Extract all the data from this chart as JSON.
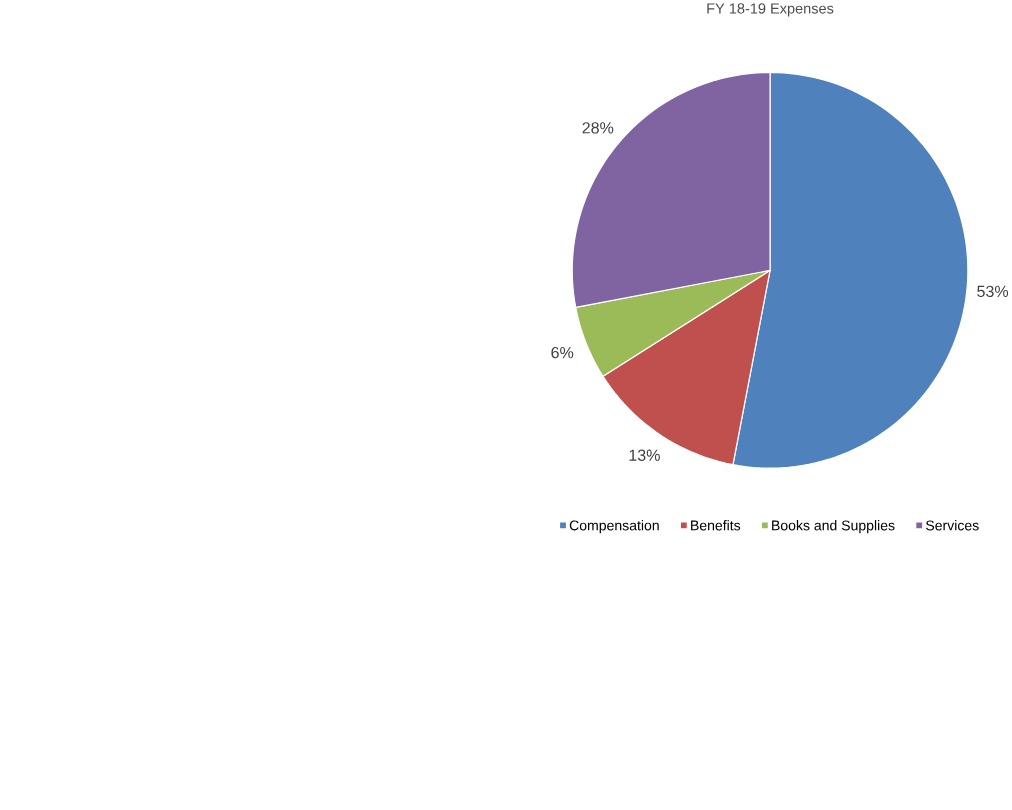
{
  "chart_data": {
    "type": "pie",
    "title": "FY 18-19 Expenses",
    "categories": [
      "Compensation",
      "Benefits",
      "Books and Supplies",
      "Services"
    ],
    "values": [
      53,
      13,
      6,
      28
    ],
    "value_labels": [
      "53%",
      "13%",
      "6%",
      "28%"
    ],
    "colors": [
      "#4f81bd",
      "#c0504d",
      "#9bbb59",
      "#8064a2"
    ],
    "legend": "bottom"
  }
}
